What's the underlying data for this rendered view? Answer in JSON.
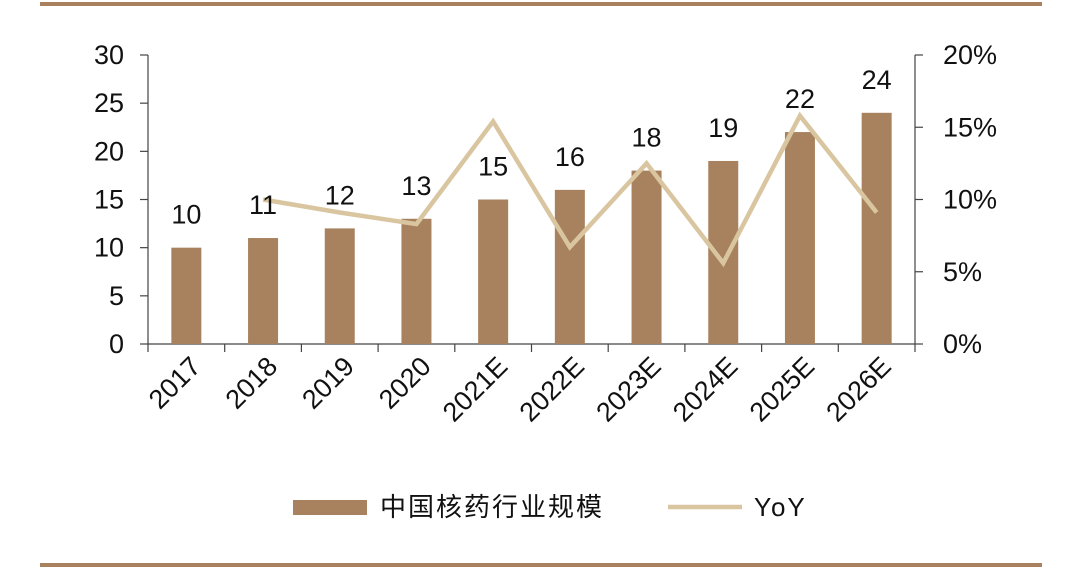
{
  "chart_data": {
    "type": "bar",
    "categories": [
      "2017",
      "2018",
      "2019",
      "2020",
      "2021E",
      "2022E",
      "2023E",
      "2024E",
      "2025E",
      "2026E"
    ],
    "series": [
      {
        "name": "中国核药行业规模",
        "type": "bar",
        "axis": "left",
        "values": [
          10,
          11,
          12,
          13,
          15,
          16,
          18,
          19,
          22,
          24
        ],
        "data_labels": [
          "10",
          "11",
          "12",
          "13",
          "15",
          "16",
          "18",
          "19",
          "22",
          "24"
        ],
        "color": "#a8825e"
      },
      {
        "name": "YoY",
        "type": "line",
        "axis": "right",
        "values": [
          null,
          0.1,
          0.091,
          0.083,
          0.154,
          0.067,
          0.125,
          0.056,
          0.158,
          0.091
        ],
        "color": "#d9c6a0"
      }
    ],
    "y_left": {
      "ylim": [
        0,
        30
      ],
      "ticks": [
        0,
        5,
        10,
        15,
        20,
        25,
        30
      ],
      "tick_labels": [
        "0",
        "5",
        "10",
        "15",
        "20",
        "25",
        "30"
      ]
    },
    "y_right": {
      "ylim": [
        0,
        0.2
      ],
      "ticks": [
        0,
        0.05,
        0.1,
        0.15,
        0.2
      ],
      "tick_labels": [
        "0%",
        "5%",
        "10%",
        "15%",
        "20%"
      ]
    },
    "grid": false,
    "legend": {
      "placement": "bottom",
      "entries": [
        "中国核药行业规模",
        "YoY"
      ]
    }
  }
}
